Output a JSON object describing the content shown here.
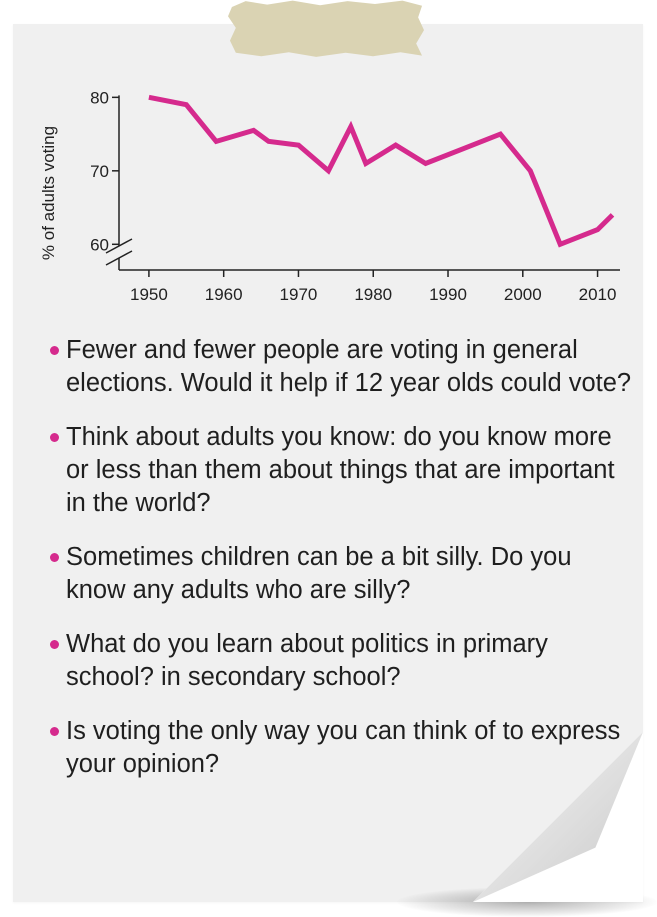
{
  "chart_data": {
    "type": "line",
    "ylabel": "% of adults voting",
    "xlabel": "",
    "title": "",
    "x": [
      1950,
      1955,
      1959,
      1964,
      1966,
      1970,
      1974,
      1977,
      1979,
      1983,
      1987,
      1992,
      1997,
      2001,
      2005,
      2010,
      2012
    ],
    "y": [
      80,
      79,
      74,
      75.5,
      74,
      73.5,
      70,
      76,
      71,
      73.5,
      71,
      73,
      75,
      70,
      60,
      62,
      64
    ],
    "xlim": [
      1946,
      2013
    ],
    "ylim": [
      58,
      81
    ],
    "xticks": [
      "1950",
      "1960",
      "1970",
      "1980",
      "1990",
      "2000",
      "2010"
    ],
    "yticks": [
      "60",
      "70",
      "80"
    ],
    "axis_break": true,
    "grid": false,
    "line_color": "#d52a8d"
  },
  "questions": [
    {
      "text": "Fewer and fewer people are voting in general elections. Would it help if 12 year olds could vote?"
    },
    {
      "text": "Think about adults you know: do you know more or less than them about things that are important in the world?"
    },
    {
      "text": "Sometimes children can be a bit silly. Do you know any adults who are silly?"
    },
    {
      "text": "What do you learn about politics in primary school? in secondary school?"
    },
    {
      "text": "Is voting the only way you can think of to express your opinion?"
    }
  ]
}
